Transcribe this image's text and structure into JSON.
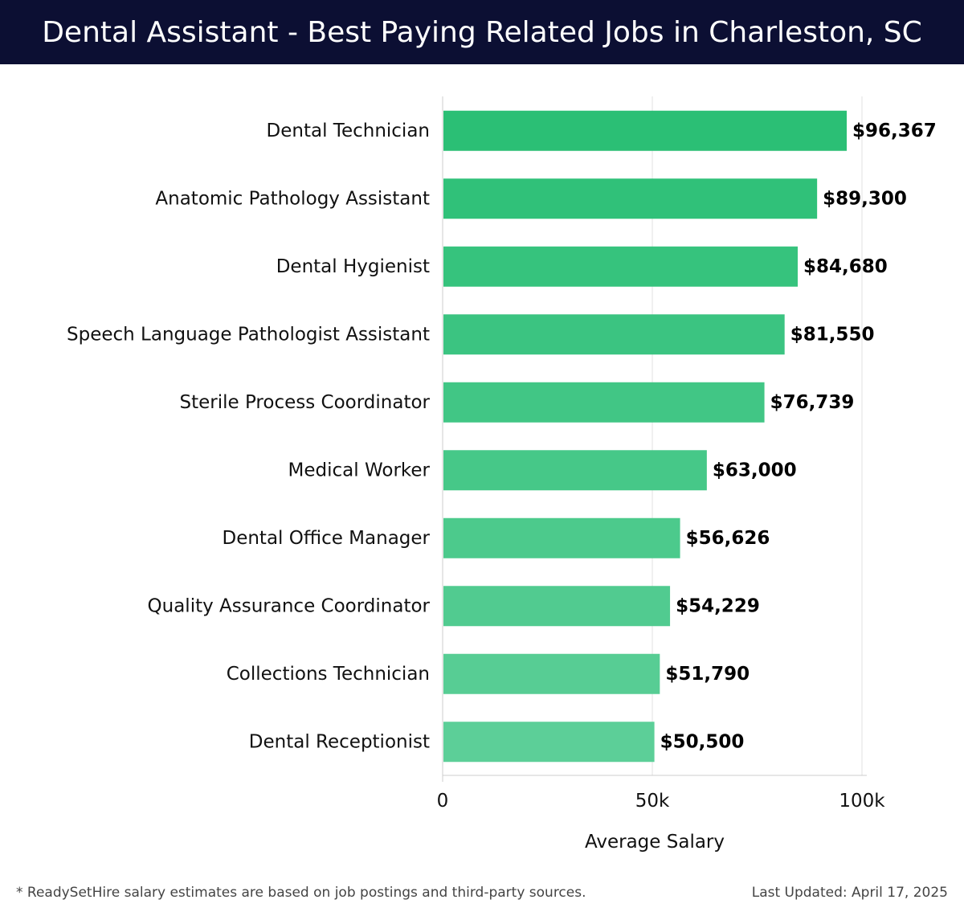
{
  "header": {
    "title": "Dental Assistant - Best Paying Related Jobs in Charleston, SC"
  },
  "chart_data": {
    "type": "bar",
    "orientation": "horizontal",
    "categories": [
      "Dental Technician",
      "Anatomic Pathology Assistant",
      "Dental Hygienist",
      "Speech Language Pathologist Assistant",
      "Sterile Process Coordinator",
      "Medical Worker",
      "Dental Office Manager",
      "Quality Assurance Coordinator",
      "Collections Technician",
      "Dental Receptionist"
    ],
    "values": [
      96367,
      89300,
      84680,
      81550,
      76739,
      63000,
      56626,
      54229,
      51790,
      50500
    ],
    "value_labels": [
      "$96,367",
      "$89,300",
      "$84,680",
      "$81,550",
      "$76,739",
      "$63,000",
      "$56,626",
      "$54,229",
      "$51,790",
      "$50,500"
    ],
    "xlabel": "Average Salary",
    "xlim": [
      0,
      100000
    ],
    "xticks": [
      0,
      50000,
      100000
    ],
    "xtick_labels": [
      "0",
      "50k",
      "100k"
    ],
    "grid": true,
    "colors": {
      "bar_top": "#2bbf75",
      "bar_bottom": "#5ccf98"
    }
  },
  "footer": {
    "note": "* ReadySetHire salary estimates are based on job postings and third-party sources.",
    "updated": "Last Updated: April 17, 2025"
  }
}
